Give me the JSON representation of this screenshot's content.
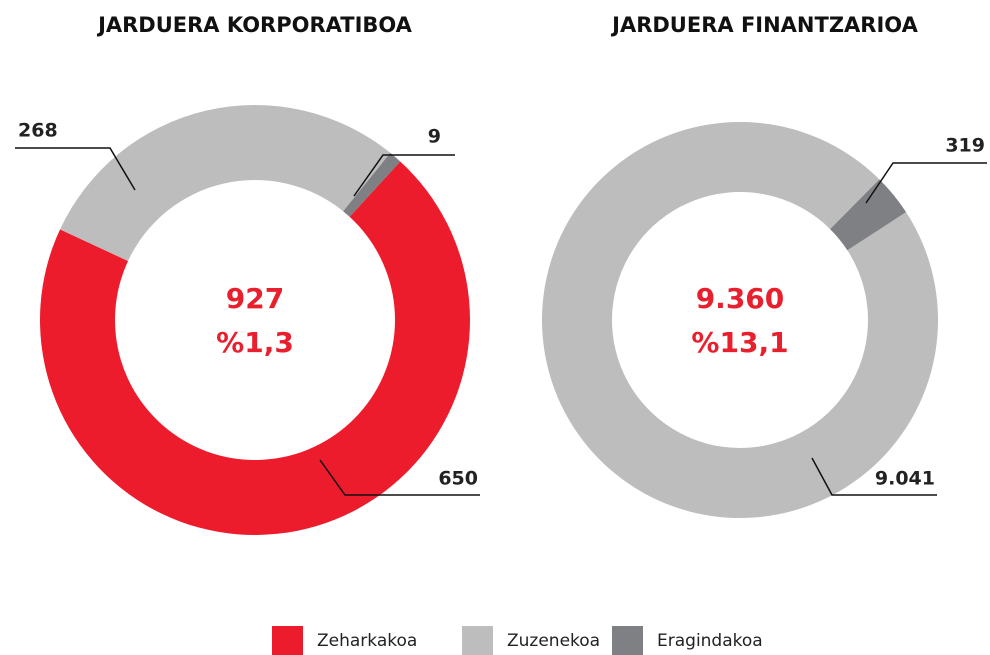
{
  "chart_data": [
    {
      "type": "pie",
      "title": "JARDUERA KORPORATIBOA",
      "center_value": "927",
      "center_share": "%1,3",
      "categories": [
        "Zeharkakoa",
        "Zuzenekoa",
        "Eragindakoa"
      ],
      "values": [
        650,
        268,
        9
      ],
      "colors": [
        "#ed1c2c",
        "#bdbdbe",
        "#7f8083"
      ]
    },
    {
      "type": "pie",
      "title": "JARDUERA FINANTZARIOA",
      "center_value": "9.360",
      "center_share": "%13,1",
      "categories": [
        "Zuzenekoa",
        "Eragindakoa"
      ],
      "values": [
        9041,
        319
      ],
      "value_labels": [
        "9.041",
        "319"
      ],
      "colors": [
        "#bdbdbe",
        "#7f8083"
      ]
    }
  ]
}
